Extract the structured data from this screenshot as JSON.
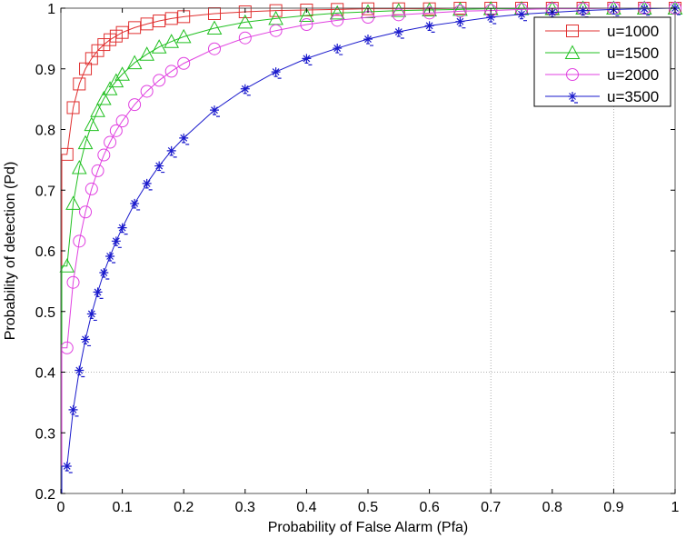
{
  "chart_data": {
    "type": "line",
    "title": "",
    "xlabel": "Probability of False Alarm (Pfa)",
    "ylabel": "Probability of detection (Pd)",
    "xlim": [
      0,
      1
    ],
    "ylim": [
      0.2,
      1
    ],
    "xticks": [
      "0",
      "0.1",
      "0.2",
      "0.3",
      "0.4",
      "0.5",
      "0.6",
      "0.7",
      "0.8",
      "0.9",
      "1"
    ],
    "yticks": [
      "0.2",
      "0.3",
      "0.4",
      "0.5",
      "0.6",
      "0.7",
      "0.8",
      "0.9",
      "1"
    ],
    "grid_lines": {
      "x": [
        0.7,
        0.9
      ],
      "y": [
        0.4
      ]
    },
    "legend_position": "top-right",
    "x": [
      0.01,
      0.02,
      0.03,
      0.04,
      0.05,
      0.06,
      0.07,
      0.08,
      0.09,
      0.1,
      0.12,
      0.14,
      0.16,
      0.18,
      0.2,
      0.25,
      0.3,
      0.35,
      0.4,
      0.45,
      0.5,
      0.55,
      0.6,
      0.65,
      0.7,
      0.75,
      0.8,
      0.85,
      0.9,
      0.95,
      1.0
    ],
    "series": [
      {
        "name": "u=1000",
        "color": "#e03030",
        "marker": "square",
        "values": [
          0.759,
          0.836,
          0.875,
          0.9,
          0.917,
          0.93,
          0.94,
          0.948,
          0.954,
          0.96,
          0.968,
          0.974,
          0.979,
          0.983,
          0.986,
          0.991,
          0.994,
          0.996,
          0.997,
          0.998,
          0.999,
          0.999,
          0.999,
          1,
          1,
          1,
          1,
          1,
          1,
          1,
          1
        ]
      },
      {
        "name": "u=1500",
        "color": "#20c020",
        "marker": "triangle",
        "values": [
          0.575,
          0.678,
          0.737,
          0.778,
          0.808,
          0.831,
          0.851,
          0.867,
          0.88,
          0.891,
          0.91,
          0.924,
          0.936,
          0.945,
          0.953,
          0.967,
          0.977,
          0.983,
          0.988,
          0.992,
          0.994,
          0.996,
          0.997,
          0.998,
          0.999,
          0.999,
          0.999,
          1,
          1,
          1,
          1
        ]
      },
      {
        "name": "u=2000",
        "color": "#e040e0",
        "marker": "circle",
        "values": [
          0.44,
          0.548,
          0.616,
          0.664,
          0.702,
          0.732,
          0.758,
          0.779,
          0.798,
          0.814,
          0.841,
          0.863,
          0.881,
          0.896,
          0.909,
          0.933,
          0.951,
          0.963,
          0.973,
          0.98,
          0.985,
          0.989,
          0.992,
          0.995,
          0.996,
          0.998,
          0.999,
          0.999,
          1,
          1,
          1
        ]
      },
      {
        "name": "u=3500",
        "color": "#1a1acc",
        "marker": "star",
        "values": [
          0.245,
          0.338,
          0.403,
          0.454,
          0.496,
          0.532,
          0.564,
          0.591,
          0.616,
          0.638,
          0.678,
          0.711,
          0.74,
          0.765,
          0.786,
          0.832,
          0.867,
          0.895,
          0.917,
          0.934,
          0.949,
          0.961,
          0.971,
          0.978,
          0.985,
          0.99,
          0.993,
          0.996,
          0.998,
          0.999,
          1
        ]
      }
    ]
  }
}
